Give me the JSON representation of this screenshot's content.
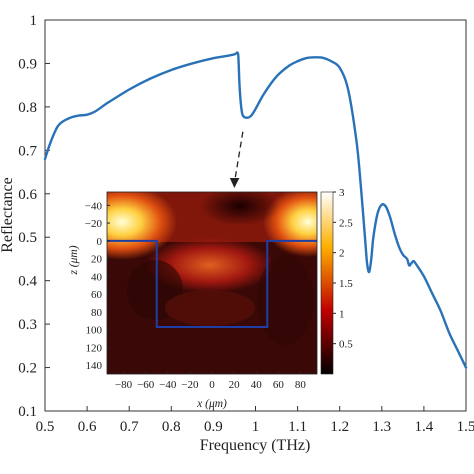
{
  "chart_data": [
    {
      "type": "line",
      "xlabel": "Frequency (THz)",
      "ylabel": "Reflectance",
      "xlim": [
        0.5,
        1.5
      ],
      "ylim": [
        0.1,
        1.0
      ],
      "x_ticks": [
        "0.5",
        "0.6",
        "0.7",
        "0.8",
        "0.9",
        "1",
        "1.1",
        "1.2",
        "1.3",
        "1.4",
        "1.5"
      ],
      "y_ticks": [
        "0.1",
        "0.2",
        "0.3",
        "0.4",
        "0.5",
        "0.6",
        "0.7",
        "0.8",
        "0.9",
        "1"
      ],
      "grid": false,
      "line_color": "#2a72b8",
      "series": [
        {
          "x": [
            0.5,
            0.51,
            0.52,
            0.53,
            0.54,
            0.56,
            0.58,
            0.6,
            0.62,
            0.65,
            0.7,
            0.75,
            0.8,
            0.85,
            0.9,
            0.93,
            0.95,
            0.958,
            0.96,
            0.962,
            0.966,
            0.97,
            0.98,
            0.99,
            1.0,
            1.02,
            1.05,
            1.08,
            1.1,
            1.12,
            1.14,
            1.16,
            1.18,
            1.2,
            1.22,
            1.24,
            1.25,
            1.26,
            1.265,
            1.27,
            1.275,
            1.28,
            1.29,
            1.3,
            1.31,
            1.32,
            1.33,
            1.34,
            1.35,
            1.36,
            1.365,
            1.37,
            1.375,
            1.38,
            1.4,
            1.42,
            1.44,
            1.46,
            1.48,
            1.5
          ],
          "y": [
            0.68,
            0.71,
            0.735,
            0.755,
            0.765,
            0.775,
            0.78,
            0.782,
            0.79,
            0.81,
            0.84,
            0.865,
            0.885,
            0.9,
            0.912,
            0.917,
            0.921,
            0.924,
            0.9,
            0.85,
            0.8,
            0.78,
            0.775,
            0.78,
            0.795,
            0.83,
            0.87,
            0.895,
            0.905,
            0.912,
            0.914,
            0.913,
            0.905,
            0.89,
            0.84,
            0.72,
            0.62,
            0.5,
            0.44,
            0.42,
            0.45,
            0.5,
            0.555,
            0.575,
            0.57,
            0.545,
            0.51,
            0.48,
            0.46,
            0.45,
            0.435,
            0.44,
            0.445,
            0.44,
            0.41,
            0.37,
            0.33,
            0.28,
            0.24,
            0.2
          ]
        }
      ]
    },
    {
      "type": "heatmap",
      "xlabel": "x (μm)",
      "ylabel": "z (μm)",
      "xlim": [
        -95,
        95
      ],
      "ylim": [
        -55,
        150
      ],
      "x_ticks": [
        "−80",
        "−60",
        "−40",
        "−20",
        "0",
        "20",
        "40",
        "60",
        "80"
      ],
      "y_ticks": [
        "−40",
        "−20",
        "0",
        "20",
        "40",
        "60",
        "80",
        "100",
        "120",
        "140"
      ],
      "colorbar": {
        "range": [
          0,
          3
        ],
        "ticks": [
          "0.5",
          "1",
          "1.5",
          "2",
          "2.5",
          "3"
        ],
        "colormap": "hot"
      },
      "structure_outline": {
        "x": [
          -95,
          -50,
          -50,
          50,
          50,
          95
        ],
        "z": [
          0,
          0,
          97,
          97,
          0,
          0
        ],
        "color": "#1f3fa6"
      },
      "arrow_from_x": 0.97,
      "arrow_label_point_y": 0.775
    }
  ]
}
